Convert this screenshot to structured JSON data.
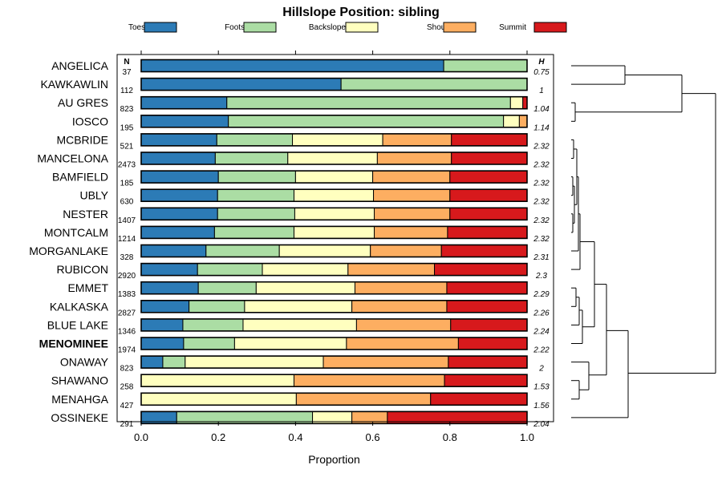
{
  "chart_data": {
    "type": "bar",
    "stacked": true,
    "orientation": "horizontal",
    "title": "Hillslope Position: sibling",
    "xlabel": "Proportion",
    "xlim": [
      0,
      1
    ],
    "xticks": [
      "0.0",
      "0.2",
      "0.4",
      "0.6",
      "0.8",
      "1.0"
    ],
    "n_header": "N",
    "h_header": "H",
    "legend": [
      {
        "name": "Toeslope",
        "color": "#2c7bb6"
      },
      {
        "name": "Footslope",
        "color": "#abdda4"
      },
      {
        "name": "Backslope",
        "color": "#ffffbf"
      },
      {
        "name": "Shoulder",
        "color": "#fdae61"
      },
      {
        "name": "Summit",
        "color": "#d7191c"
      }
    ],
    "rows": [
      {
        "label": "ANGELICA",
        "n": "37",
        "h": "0.75",
        "values": [
          0.784,
          0.216,
          0,
          0,
          0
        ]
      },
      {
        "label": "KAWKAWLIN",
        "n": "112",
        "h": "1",
        "values": [
          0.518,
          0.482,
          0,
          0,
          0
        ]
      },
      {
        "label": "AU GRES",
        "n": "823",
        "h": "1.04",
        "values": [
          0.222,
          0.735,
          0.032,
          0,
          0.011
        ]
      },
      {
        "label": "IOSCO",
        "n": "195",
        "h": "1.14",
        "values": [
          0.226,
          0.713,
          0.041,
          0.02,
          0
        ]
      },
      {
        "label": "MCBRIDE",
        "n": "521",
        "h": "2.32",
        "values": [
          0.196,
          0.196,
          0.234,
          0.178,
          0.196
        ]
      },
      {
        "label": "MANCELONA",
        "n": "2473",
        "h": "2.32",
        "values": [
          0.192,
          0.188,
          0.232,
          0.192,
          0.196
        ]
      },
      {
        "label": "BAMFIELD",
        "n": "185",
        "h": "2.32",
        "values": [
          0.2,
          0.2,
          0.2,
          0.2,
          0.2
        ]
      },
      {
        "label": "UBLY",
        "n": "630",
        "h": "2.32",
        "values": [
          0.198,
          0.198,
          0.206,
          0.198,
          0.2
        ]
      },
      {
        "label": "NESTER",
        "n": "1407",
        "h": "2.32",
        "values": [
          0.198,
          0.2,
          0.206,
          0.196,
          0.2
        ]
      },
      {
        "label": "MONTCALM",
        "n": "1214",
        "h": "2.32",
        "values": [
          0.19,
          0.206,
          0.208,
          0.19,
          0.206
        ]
      },
      {
        "label": "MORGANLAKE",
        "n": "328",
        "h": "2.31",
        "values": [
          0.168,
          0.19,
          0.236,
          0.184,
          0.222
        ]
      },
      {
        "label": "RUBICON",
        "n": "2920",
        "h": "2.3",
        "values": [
          0.146,
          0.168,
          0.222,
          0.224,
          0.24
        ]
      },
      {
        "label": "EMMET",
        "n": "1383",
        "h": "2.29",
        "values": [
          0.148,
          0.15,
          0.256,
          0.238,
          0.208
        ]
      },
      {
        "label": "KALKASKA",
        "n": "2827",
        "h": "2.26",
        "values": [
          0.124,
          0.144,
          0.278,
          0.246,
          0.208
        ]
      },
      {
        "label": "BLUE LAKE",
        "n": "1346",
        "h": "2.24",
        "values": [
          0.108,
          0.156,
          0.294,
          0.244,
          0.198
        ]
      },
      {
        "label": "MENOMINEE",
        "n": "1974",
        "h": "2.22",
        "values": [
          0.11,
          0.132,
          0.29,
          0.29,
          0.178
        ],
        "highlight": true
      },
      {
        "label": "ONAWAY",
        "n": "823",
        "h": "2",
        "values": [
          0.056,
          0.058,
          0.358,
          0.324,
          0.204
        ]
      },
      {
        "label": "SHAWANO",
        "n": "258",
        "h": "1.53",
        "values": [
          0,
          0,
          0.396,
          0.39,
          0.214
        ]
      },
      {
        "label": "MENAHGA",
        "n": "427",
        "h": "1.56",
        "values": [
          0,
          0,
          0.402,
          0.348,
          0.25
        ]
      },
      {
        "label": "OSSINEKE",
        "n": "291",
        "h": "2.04",
        "values": [
          0.092,
          0.352,
          0.102,
          0.092,
          0.362
        ]
      }
    ]
  }
}
